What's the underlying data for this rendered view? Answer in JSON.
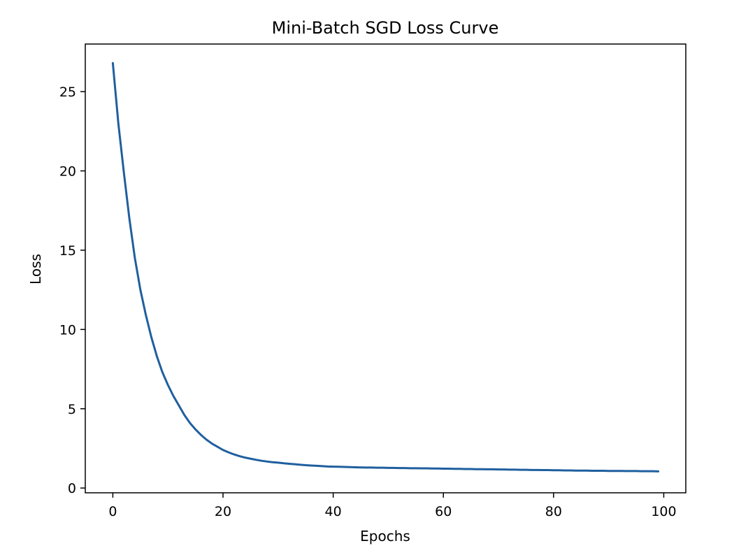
{
  "chart_data": {
    "type": "line",
    "title": "Mini-Batch SGD Loss Curve",
    "xlabel": "Epochs",
    "ylabel": "Loss",
    "xlim": [
      -5,
      104
    ],
    "ylim": [
      -0.3,
      28.0
    ],
    "xticks": [
      0,
      20,
      40,
      60,
      80,
      100
    ],
    "yticks": [
      0,
      5,
      10,
      15,
      20,
      25
    ],
    "grid": false,
    "legend": false,
    "color": "#1f5f9f",
    "series": [
      {
        "x": [
          0,
          1,
          2,
          3,
          4,
          5,
          6,
          7,
          8,
          9,
          10,
          11,
          12,
          13,
          14,
          15,
          16,
          17,
          18,
          19,
          20,
          21,
          22,
          23,
          24,
          25,
          26,
          27,
          28,
          29,
          30,
          31,
          32,
          33,
          34,
          35,
          36,
          37,
          38,
          39,
          40,
          41,
          42,
          43,
          44,
          45,
          46,
          47,
          48,
          49,
          50,
          51,
          52,
          53,
          54,
          55,
          56,
          57,
          58,
          59,
          60,
          61,
          62,
          63,
          64,
          65,
          66,
          67,
          68,
          69,
          70,
          71,
          72,
          73,
          74,
          75,
          76,
          77,
          78,
          79,
          80,
          81,
          82,
          83,
          84,
          85,
          86,
          87,
          88,
          89,
          90,
          91,
          92,
          93,
          94,
          95,
          96,
          97,
          98,
          99
        ],
        "values": [
          26.8,
          23.0,
          19.9,
          17.0,
          14.5,
          12.5,
          10.9,
          9.5,
          8.3,
          7.3,
          6.5,
          5.8,
          5.2,
          4.6,
          4.1,
          3.7,
          3.35,
          3.05,
          2.8,
          2.6,
          2.4,
          2.25,
          2.12,
          2.01,
          1.92,
          1.85,
          1.78,
          1.72,
          1.67,
          1.63,
          1.6,
          1.56,
          1.53,
          1.5,
          1.47,
          1.44,
          1.42,
          1.4,
          1.38,
          1.36,
          1.35,
          1.34,
          1.33,
          1.32,
          1.31,
          1.3,
          1.29,
          1.29,
          1.28,
          1.28,
          1.27,
          1.27,
          1.26,
          1.26,
          1.25,
          1.25,
          1.24,
          1.24,
          1.23,
          1.23,
          1.22,
          1.22,
          1.21,
          1.21,
          1.2,
          1.2,
          1.19,
          1.19,
          1.18,
          1.18,
          1.17,
          1.17,
          1.16,
          1.16,
          1.15,
          1.15,
          1.14,
          1.14,
          1.13,
          1.13,
          1.12,
          1.12,
          1.11,
          1.11,
          1.1,
          1.1,
          1.1,
          1.09,
          1.09,
          1.09,
          1.08,
          1.08,
          1.08,
          1.07,
          1.07,
          1.07,
          1.06,
          1.06,
          1.06,
          1.05
        ]
      }
    ]
  }
}
